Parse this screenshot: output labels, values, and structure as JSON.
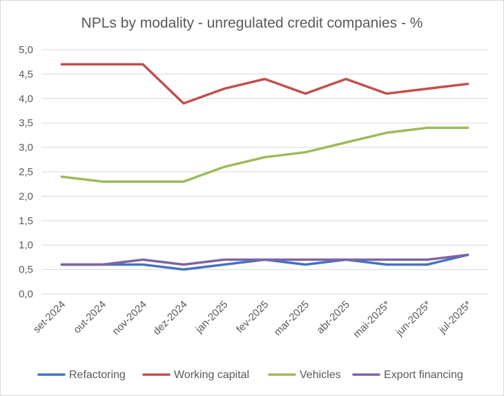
{
  "chart_data": {
    "type": "line",
    "title": "NPLs by modality - unregulated credit companies - %",
    "xlabel": "",
    "ylabel": "",
    "categories": [
      "set-2024",
      "out-2024",
      "nov-2024",
      "dez-2024",
      "jan-2025",
      "fev-2025",
      "mar-2025",
      "abr-2025",
      "mai-2025*",
      "jun-2025*",
      "jul-2025*"
    ],
    "ylim": [
      0,
      5
    ],
    "yticks": [
      "0,0",
      "0,5",
      "1,0",
      "1,5",
      "2,0",
      "2,5",
      "3,0",
      "3,5",
      "4,0",
      "4,5",
      "5,0"
    ],
    "grid": "horizontal",
    "legend_position": "bottom",
    "series": [
      {
        "name": "Refactoring",
        "color": "#4472C4",
        "values": [
          0.6,
          0.6,
          0.6,
          0.5,
          0.6,
          0.7,
          0.6,
          0.7,
          0.6,
          0.6,
          0.8
        ]
      },
      {
        "name": "Working capital",
        "color": "#C0504D",
        "values": [
          4.7,
          4.7,
          4.7,
          3.9,
          4.2,
          4.4,
          4.1,
          4.4,
          4.1,
          4.2,
          4.3
        ]
      },
      {
        "name": "Vehicles",
        "color": "#9BBB59",
        "values": [
          2.4,
          2.3,
          2.3,
          2.3,
          2.6,
          2.8,
          2.9,
          3.1,
          3.3,
          3.4,
          3.4
        ]
      },
      {
        "name": "Export financing",
        "color": "#8064A2",
        "values": [
          0.6,
          0.6,
          0.7,
          0.6,
          0.7,
          0.7,
          0.7,
          0.7,
          0.7,
          0.7,
          0.8
        ]
      }
    ]
  }
}
